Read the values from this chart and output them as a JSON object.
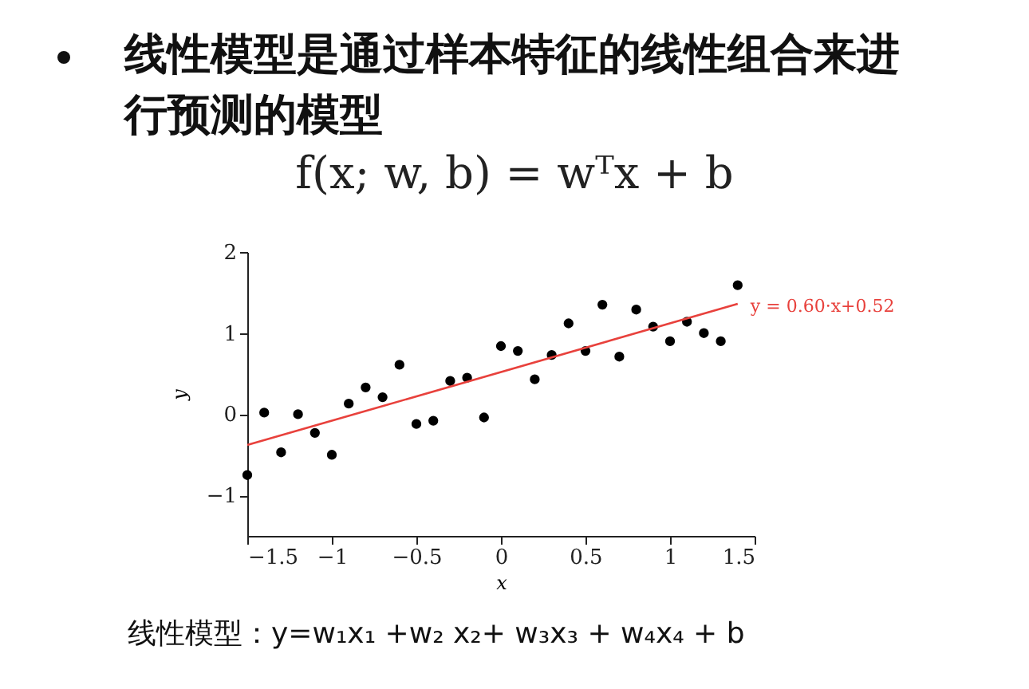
{
  "chart_data": {
    "type": "scatter",
    "title": "线性模型是通过样本特征的线性组合来进行预测的模型",
    "subtitle": "f(x; w, b) = wᵀx + b",
    "xlabel": "x",
    "ylabel": "y",
    "x": [
      -1.5,
      -1.4,
      -1.3,
      -1.2,
      -1.1,
      -1.0,
      -0.9,
      -0.8,
      -0.7,
      -0.6,
      -0.5,
      -0.4,
      -0.3,
      -0.2,
      -0.1,
      0,
      0.1,
      0.2,
      0.3,
      0.4,
      0.5,
      0.6,
      0.7,
      0.8,
      0.9,
      1.0,
      1.1,
      1.2,
      1.3,
      1.4
    ],
    "xlim": [
      -1.5,
      1.5
    ],
    "xticks": [
      -1.5,
      -1,
      -0.5,
      0,
      0.5,
      1,
      1.5
    ],
    "ylim": [
      -1.5,
      2
    ],
    "yticks": [
      -1,
      0,
      1,
      2
    ],
    "grid": false,
    "series": [
      {
        "color": "#000000",
        "marker": "circle",
        "values": [
          -0.75,
          0.02,
          -0.47,
          0,
          -0.23,
          -0.5,
          0.13,
          0.33,
          0.21,
          0.61,
          -0.12,
          -0.08,
          0.41,
          0.45,
          -0.04,
          0.84,
          0.78,
          0.43,
          0.73,
          1.12,
          0.78,
          1.35,
          0.71,
          1.29,
          1.08,
          0.9,
          1.14,
          1.0,
          0.9,
          1.59
        ]
      },
      {
        "type": "line",
        "color": "#e8413c",
        "x": [
          -1.5,
          1.4
        ],
        "values": [
          -0.38,
          1.36
        ]
      }
    ],
    "annotations": [
      {
        "text": "y = 0.60·x+0.52",
        "x": 1.4,
        "y": 1.36
      },
      "线性模型：y=w₁x₁ +w₂ x₂+ w₃x₃ + w₄x₄ + b"
    ]
  }
}
